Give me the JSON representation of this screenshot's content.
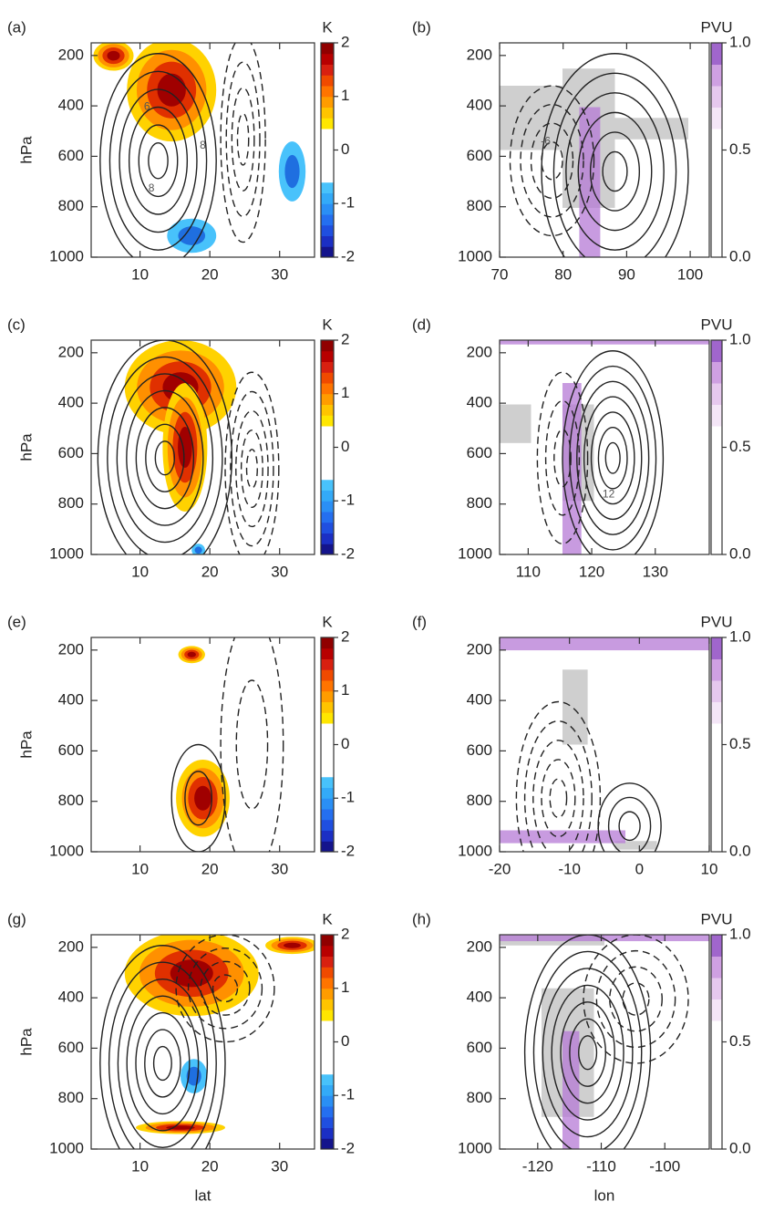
{
  "chart_data": [
    {
      "type": "contour",
      "panel_label": "(a)",
      "y_label": "hPa",
      "xlim": [
        3,
        35
      ],
      "xticks": [
        10,
        20,
        30
      ],
      "ylim": [
        1000,
        150
      ],
      "yticks": [
        200,
        400,
        600,
        800,
        1000
      ],
      "colorbar": {
        "label": "K",
        "lim": [
          -2,
          2
        ],
        "ticks": [
          -2,
          -1,
          0,
          1,
          2
        ],
        "colors": [
          "#14148c",
          "#1b2fc4",
          "#1f4fe0",
          "#246ff0",
          "#2a8ff5",
          "#33aaf8",
          "#48c2fb",
          "#ffffff",
          "#ffffff",
          "#ffffff",
          "#ffffff",
          "#ffffff",
          "#ffe600",
          "#ffc400",
          "#ff9c00",
          "#ff7400",
          "#f04a00",
          "#d82010",
          "#b80000",
          "#900000"
        ]
      },
      "contour_labels": [
        "6",
        "8",
        "8"
      ]
    },
    {
      "type": "contour",
      "panel_label": "(b)",
      "xlim": [
        70,
        103
      ],
      "xticks": [
        70,
        80,
        90,
        100
      ],
      "ylim": [
        1000,
        150
      ],
      "yticks": [
        200,
        400,
        600,
        800,
        1000
      ],
      "colorbar": {
        "label": "PVU",
        "lim": [
          0,
          1
        ],
        "ticks": [
          {
            "value": 0,
            "label": "0.0"
          },
          {
            "value": 0.5,
            "label": "0.5"
          },
          {
            "value": 1,
            "label": "1.0"
          }
        ],
        "colors": [
          "#ffffff",
          "#ffffff",
          "#ffffff",
          "#ffffff",
          "#ffffff",
          "#ffffff",
          "#f4e6f7",
          "#e6c8ee",
          "#cfa0e2",
          "#a066cc"
        ]
      },
      "contour_labels": [
        "-6"
      ]
    },
    {
      "type": "contour",
      "panel_label": "(c)",
      "y_label": "hPa",
      "xlim": [
        3,
        35
      ],
      "xticks": [
        10,
        20,
        30
      ],
      "ylim": [
        1000,
        150
      ],
      "yticks": [
        200,
        400,
        600,
        800,
        1000
      ],
      "colorbar": {
        "label": "K",
        "lim": [
          -2,
          2
        ],
        "ticks": [
          -2,
          -1,
          0,
          1,
          2
        ],
        "colors": [
          "#14148c",
          "#1b2fc4",
          "#1f4fe0",
          "#246ff0",
          "#2a8ff5",
          "#33aaf8",
          "#48c2fb",
          "#ffffff",
          "#ffffff",
          "#ffffff",
          "#ffffff",
          "#ffffff",
          "#ffe600",
          "#ffc400",
          "#ff9c00",
          "#ff7400",
          "#f04a00",
          "#d82010",
          "#b80000",
          "#900000"
        ]
      }
    },
    {
      "type": "contour",
      "panel_label": "(d)",
      "xlim": [
        105.5,
        138.5
      ],
      "xticks": [
        110,
        120,
        130
      ],
      "ylim": [
        1000,
        150
      ],
      "yticks": [
        200,
        400,
        600,
        800,
        1000
      ],
      "colorbar": {
        "label": "PVU",
        "lim": [
          0,
          1
        ],
        "ticks": [
          {
            "value": 0,
            "label": "0.0"
          },
          {
            "value": 0.5,
            "label": "0.5"
          },
          {
            "value": 1,
            "label": "1.0"
          }
        ],
        "colors": [
          "#ffffff",
          "#ffffff",
          "#ffffff",
          "#ffffff",
          "#ffffff",
          "#ffffff",
          "#f4e6f7",
          "#e6c8ee",
          "#cfa0e2",
          "#a066cc"
        ]
      },
      "contour_labels": [
        "12"
      ]
    },
    {
      "type": "contour",
      "panel_label": "(e)",
      "y_label": "hPa",
      "xlim": [
        3,
        35
      ],
      "xticks": [
        10,
        20,
        30
      ],
      "ylim": [
        1000,
        150
      ],
      "yticks": [
        200,
        400,
        600,
        800,
        1000
      ],
      "colorbar": {
        "label": "K",
        "lim": [
          -2,
          2
        ],
        "ticks": [
          -2,
          -1,
          0,
          1,
          2
        ],
        "colors": [
          "#14148c",
          "#1b2fc4",
          "#1f4fe0",
          "#246ff0",
          "#2a8ff5",
          "#33aaf8",
          "#48c2fb",
          "#ffffff",
          "#ffffff",
          "#ffffff",
          "#ffffff",
          "#ffffff",
          "#ffe600",
          "#ffc400",
          "#ff9c00",
          "#ff7400",
          "#f04a00",
          "#d82010",
          "#b80000",
          "#900000"
        ]
      }
    },
    {
      "type": "contour",
      "panel_label": "(f)",
      "xlim": [
        -20,
        10
      ],
      "xticks": [
        -20,
        -10,
        0,
        10
      ],
      "ylim": [
        1000,
        150
      ],
      "yticks": [
        200,
        400,
        600,
        800,
        1000
      ],
      "colorbar": {
        "label": "PVU",
        "lim": [
          0,
          1
        ],
        "ticks": [
          {
            "value": 0,
            "label": "0.0"
          },
          {
            "value": 0.5,
            "label": "0.5"
          },
          {
            "value": 1,
            "label": "1.0"
          }
        ],
        "colors": [
          "#ffffff",
          "#ffffff",
          "#ffffff",
          "#ffffff",
          "#ffffff",
          "#ffffff",
          "#f4e6f7",
          "#e6c8ee",
          "#cfa0e2",
          "#a066cc"
        ]
      }
    },
    {
      "type": "contour",
      "panel_label": "(g)",
      "y_label": "hPa",
      "x_label": "lat",
      "xlim": [
        3,
        35
      ],
      "xticks": [
        10,
        20,
        30
      ],
      "ylim": [
        1000,
        150
      ],
      "yticks": [
        200,
        400,
        600,
        800,
        1000
      ],
      "colorbar": {
        "label": "K",
        "lim": [
          -2,
          2
        ],
        "ticks": [
          -2,
          -1,
          0,
          1,
          2
        ],
        "colors": [
          "#14148c",
          "#1b2fc4",
          "#1f4fe0",
          "#246ff0",
          "#2a8ff5",
          "#33aaf8",
          "#48c2fb",
          "#ffffff",
          "#ffffff",
          "#ffffff",
          "#ffffff",
          "#ffffff",
          "#ffe600",
          "#ffc400",
          "#ff9c00",
          "#ff7400",
          "#f04a00",
          "#d82010",
          "#b80000",
          "#900000"
        ]
      }
    },
    {
      "type": "contour",
      "panel_label": "(h)",
      "x_label": "lon",
      "xlim": [
        -126,
        -93
      ],
      "xticks": [
        -120,
        -110,
        -100
      ],
      "ylim": [
        1000,
        150
      ],
      "yticks": [
        200,
        400,
        600,
        800,
        1000
      ],
      "colorbar": {
        "label": "PVU",
        "lim": [
          0,
          1
        ],
        "ticks": [
          {
            "value": 0,
            "label": "0.0"
          },
          {
            "value": 0.5,
            "label": "0.5"
          },
          {
            "value": 1,
            "label": "1.0"
          }
        ],
        "colors": [
          "#ffffff",
          "#ffffff",
          "#ffffff",
          "#ffffff",
          "#ffffff",
          "#ffffff",
          "#f4e6f7",
          "#e6c8ee",
          "#cfa0e2",
          "#a066cc"
        ]
      }
    }
  ]
}
